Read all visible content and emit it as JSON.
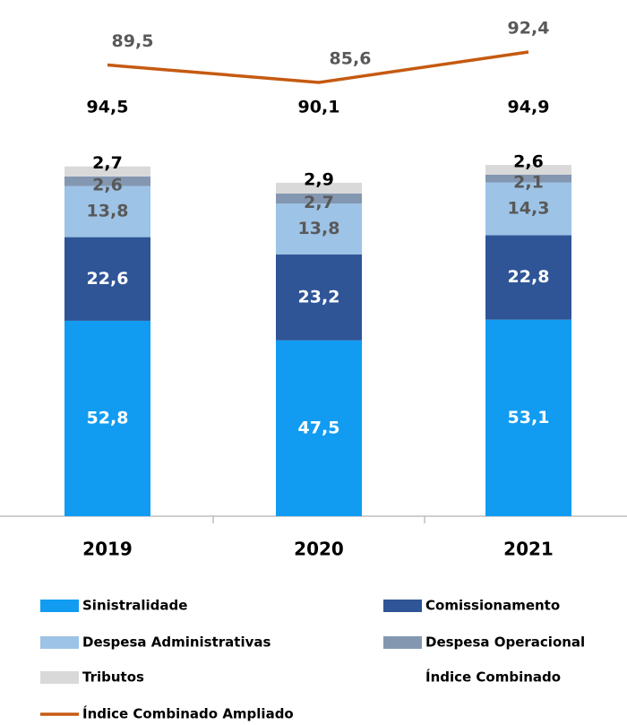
{
  "chart_data": {
    "type": "stacked_bar_line",
    "categories": [
      "2019",
      "2020",
      "2021"
    ],
    "ylim": [
      0,
      100
    ],
    "y2lim": [
      75,
      100
    ],
    "series": [
      {
        "name": "Sinistralidade",
        "color": "#119cf2",
        "label_color": "#ffffff",
        "values": [
          52.8,
          47.5,
          53.1
        ],
        "value_labels": [
          "52,8",
          "47,5",
          "53,1"
        ]
      },
      {
        "name": "Comissionamento",
        "color": "#2f5597",
        "label_color": "#ffffff",
        "values": [
          22.6,
          23.2,
          22.8
        ],
        "value_labels": [
          "22,6",
          "23,2",
          "22,8"
        ]
      },
      {
        "name": "Despesa Administrativas",
        "color": "#9dc3e6",
        "label_color": "#595959",
        "values": [
          13.8,
          13.8,
          14.3
        ],
        "value_labels": [
          "13,8",
          "13,8",
          "14,3"
        ]
      },
      {
        "name": "Despesa Operacional",
        "color": "#8497b0",
        "label_color": "#595959",
        "values": [
          2.6,
          2.7,
          2.1
        ],
        "value_labels": [
          "2,6",
          "2,7",
          "2,1"
        ]
      },
      {
        "name": "Tributos",
        "color": "#d9d9d9",
        "label_color": "#000000",
        "values": [
          2.7,
          2.9,
          2.6
        ],
        "value_labels": [
          "2,7",
          "2,9",
          "2,6"
        ]
      },
      {
        "name": "Índice Combinado",
        "label_color": "#000000",
        "values": [
          94.5,
          90.1,
          94.9
        ],
        "value_labels": [
          "94,5",
          "90,1",
          "94,9"
        ]
      },
      {
        "name": "Índice Combinado Ampliado",
        "color": "#c55a11",
        "label_color": "#595959",
        "axis": "y2",
        "values": [
          89.5,
          85.6,
          92.4
        ],
        "value_labels": [
          "89,5",
          "85,6",
          "92,4"
        ]
      }
    ]
  }
}
